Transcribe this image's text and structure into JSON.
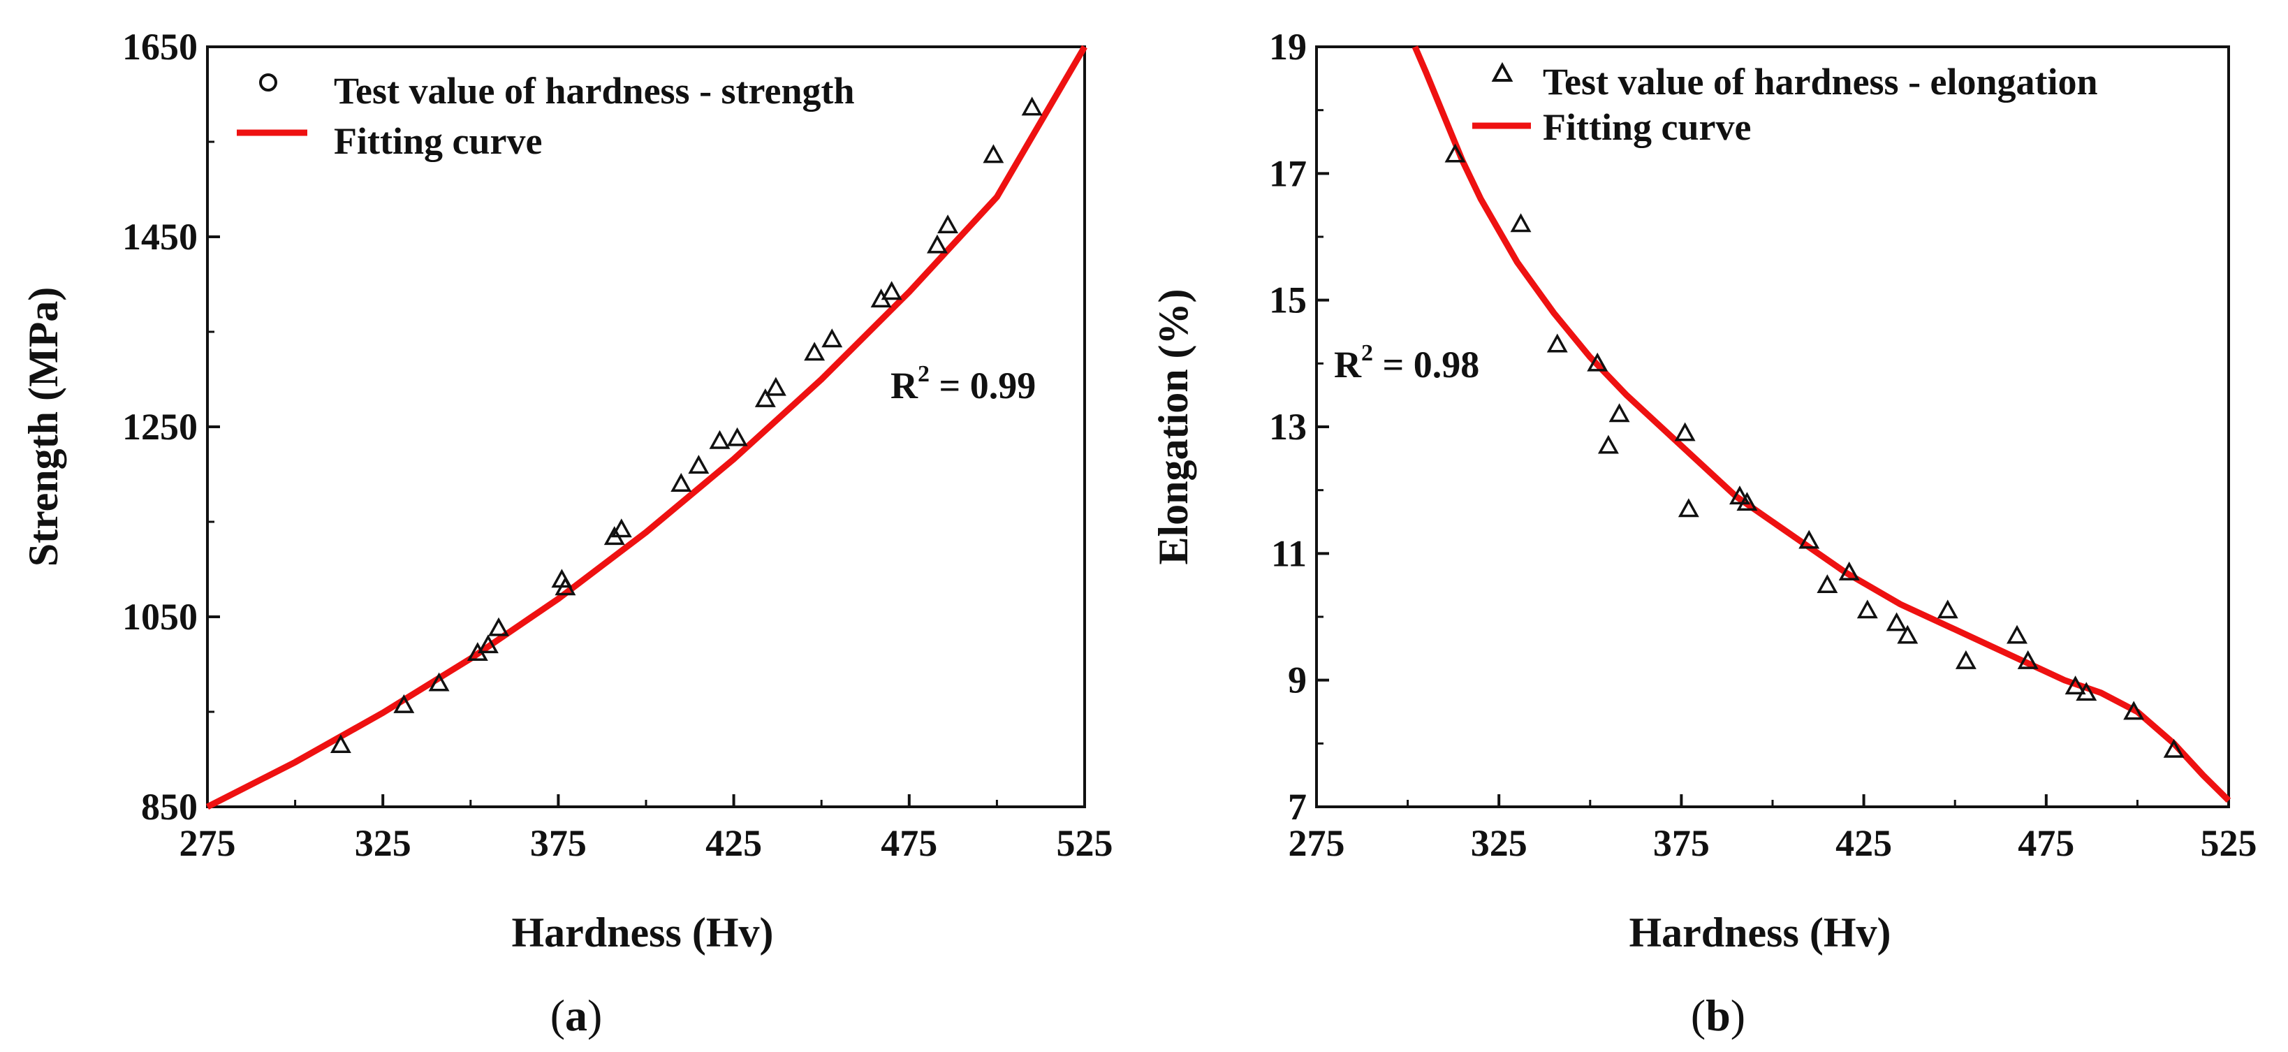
{
  "chart_data": [
    {
      "type": "scatter",
      "caption": "(a)",
      "xlabel": "Hardness (Hv)",
      "ylabel": "Strength (MPa)",
      "xlim": [
        275,
        525
      ],
      "ylim": [
        850,
        1650
      ],
      "xticks": [
        275,
        325,
        375,
        425,
        475,
        525
      ],
      "yticks": [
        850,
        1050,
        1250,
        1450,
        1650
      ],
      "annotation_prefix": "R",
      "annotation_sup": "2",
      "annotation_value": " = 0.99",
      "legend": {
        "position": "top-left",
        "points_label": "Test value of hardness - strength",
        "curve_label": "Fitting curve",
        "points_marker": "circle"
      },
      "series": [
        {
          "name": "Test value of hardness - strength",
          "marker": "triangle",
          "color": "#111111",
          "x": [
            313,
            331,
            341,
            352,
            355,
            358,
            376,
            377,
            391,
            393,
            410,
            415,
            421,
            426,
            434,
            437,
            448,
            453,
            467,
            470,
            483,
            486,
            499,
            510
          ],
          "y": [
            915,
            957,
            980,
            1012,
            1020,
            1038,
            1089,
            1081,
            1134,
            1142,
            1190,
            1209,
            1235,
            1238,
            1279,
            1291,
            1328,
            1342,
            1384,
            1392,
            1441,
            1462,
            1536,
            1586
          ]
        },
        {
          "name": "Fitting curve",
          "type": "line",
          "color": "#ee1111",
          "x": [
            275,
            300,
            325,
            350,
            375,
            400,
            425,
            450,
            475,
            500,
            525
          ],
          "y": [
            850,
            897,
            949,
            1006,
            1069,
            1139,
            1216,
            1300,
            1392,
            1492,
            1650
          ]
        }
      ]
    },
    {
      "type": "scatter",
      "caption": "(b)",
      "xlabel": "Hardness (Hv)",
      "ylabel": "Elongation (%)",
      "xlim": [
        275,
        525
      ],
      "ylim": [
        7,
        19
      ],
      "xticks": [
        275,
        325,
        375,
        425,
        475,
        525
      ],
      "yticks": [
        7,
        9,
        11,
        13,
        15,
        17,
        19
      ],
      "annotation_prefix": "R",
      "annotation_sup": "2",
      "annotation_value": " = 0.98",
      "legend": {
        "position": "top-right",
        "points_label": "Test value of hardness - elongation",
        "curve_label": "Fitting curve",
        "points_marker": "triangle"
      },
      "series": [
        {
          "name": "Test value of hardness - elongation",
          "marker": "triangle",
          "color": "#111111",
          "x": [
            313,
            331,
            341,
            352,
            355,
            358,
            376,
            377,
            391,
            393,
            410,
            415,
            421,
            426,
            434,
            437,
            448,
            453,
            467,
            470,
            483,
            486,
            499,
            510
          ],
          "y": [
            17.3,
            16.2,
            14.3,
            14.0,
            12.7,
            13.2,
            12.9,
            11.7,
            11.9,
            11.8,
            11.2,
            10.5,
            10.7,
            10.1,
            9.9,
            9.7,
            10.1,
            9.3,
            9.7,
            9.3,
            8.9,
            8.8,
            8.5,
            7.9
          ]
        },
        {
          "name": "Fitting curve",
          "type": "line",
          "color": "#ee1111",
          "x": [
            302,
            305,
            310,
            315,
            320,
            330,
            340,
            350,
            360,
            375,
            390,
            405,
            420,
            435,
            450,
            465,
            480,
            490,
            500,
            510,
            518,
            525
          ],
          "y": [
            19.0,
            18.6,
            17.9,
            17.2,
            16.6,
            15.6,
            14.8,
            14.1,
            13.5,
            12.7,
            11.9,
            11.3,
            10.7,
            10.2,
            9.8,
            9.4,
            9.0,
            8.8,
            8.5,
            8.0,
            7.5,
            7.1
          ]
        }
      ]
    }
  ]
}
